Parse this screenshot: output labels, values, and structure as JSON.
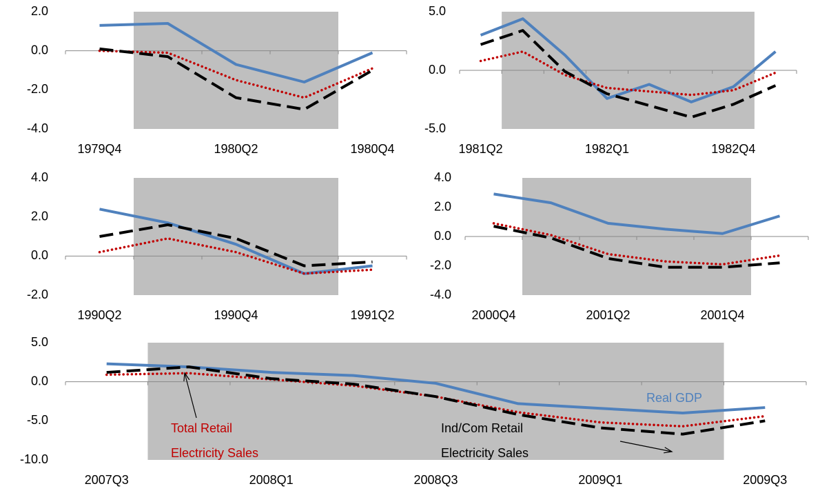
{
  "chart_data": [
    {
      "type": "line",
      "categories": [
        "1979Q4",
        null,
        "1980Q2",
        null,
        "1980Q4"
      ],
      "shade": [
        1,
        3
      ],
      "ylim": [
        -4,
        2
      ],
      "yticks": [
        {
          "value": -4,
          "label": "-4.0"
        },
        {
          "value": -2,
          "label": "-2.0"
        },
        {
          "value": 0,
          "label": "0.0"
        },
        {
          "value": 2,
          "label": "2.0"
        }
      ],
      "series": [
        {
          "color": "#4f81bd",
          "dash": "solid",
          "values": [
            1.3,
            1.4,
            -0.7,
            -1.6,
            -0.1
          ]
        },
        {
          "color": "#c00000",
          "dash": "dotted",
          "values": [
            0.0,
            -0.1,
            -1.5,
            -2.4,
            -0.9
          ]
        },
        {
          "color": "#000000",
          "dash": "dashed",
          "values": [
            0.1,
            -0.3,
            -2.4,
            -3.0,
            -1.0
          ]
        }
      ]
    },
    {
      "type": "line",
      "categories": [
        "1981Q2",
        null,
        null,
        "1982Q1",
        null,
        null,
        "1982Q4",
        null
      ],
      "shade": [
        1,
        6
      ],
      "ylim": [
        -5,
        5
      ],
      "yticks": [
        {
          "value": -5,
          "label": "-5.0"
        },
        {
          "value": 0,
          "label": "0.0"
        },
        {
          "value": 5,
          "label": "5.0"
        }
      ],
      "series": [
        {
          "color": "#4f81bd",
          "dash": "solid",
          "values": [
            3.0,
            4.4,
            1.3,
            -2.4,
            -1.2,
            -2.7,
            -1.4,
            1.6
          ]
        },
        {
          "color": "#c00000",
          "dash": "dotted",
          "values": [
            0.8,
            1.6,
            -0.4,
            -1.5,
            -1.8,
            -2.1,
            -1.7,
            -0.2
          ]
        },
        {
          "color": "#000000",
          "dash": "dashed",
          "values": [
            2.2,
            3.4,
            -0.1,
            -2.0,
            -3.0,
            -4.0,
            -2.9,
            -1.3
          ]
        }
      ]
    },
    {
      "type": "line",
      "categories": [
        "1990Q2",
        null,
        "1990Q4",
        null,
        "1991Q2"
      ],
      "shade": [
        1,
        3
      ],
      "ylim": [
        -2,
        4
      ],
      "yticks": [
        {
          "value": -2,
          "label": "-2.0"
        },
        {
          "value": 0,
          "label": "0.0"
        },
        {
          "value": 2,
          "label": "2.0"
        },
        {
          "value": 4,
          "label": "4.0"
        }
      ],
      "series": [
        {
          "color": "#4f81bd",
          "dash": "solid",
          "values": [
            2.4,
            1.7,
            0.6,
            -0.9,
            -0.5
          ]
        },
        {
          "color": "#c00000",
          "dash": "dotted",
          "values": [
            0.2,
            0.9,
            0.2,
            -0.9,
            -0.7
          ]
        },
        {
          "color": "#000000",
          "dash": "dashed",
          "values": [
            1.0,
            1.6,
            0.9,
            -0.5,
            -0.3
          ]
        }
      ]
    },
    {
      "type": "line",
      "categories": [
        "2000Q4",
        null,
        "2001Q2",
        null,
        "2001Q4",
        null
      ],
      "shade": [
        1,
        4
      ],
      "ylim": [
        -4,
        4
      ],
      "yticks": [
        {
          "value": -4,
          "label": "-4.0"
        },
        {
          "value": -2,
          "label": "-2.0"
        },
        {
          "value": 0,
          "label": "0.0"
        },
        {
          "value": 2,
          "label": "2.0"
        },
        {
          "value": 4,
          "label": "4.0"
        }
      ],
      "series": [
        {
          "color": "#4f81bd",
          "dash": "solid",
          "values": [
            2.9,
            2.3,
            0.9,
            0.5,
            0.2,
            1.4
          ]
        },
        {
          "color": "#c00000",
          "dash": "dotted",
          "values": [
            0.9,
            0.1,
            -1.2,
            -1.7,
            -1.9,
            -1.3
          ]
        },
        {
          "color": "#000000",
          "dash": "dashed",
          "values": [
            0.7,
            -0.1,
            -1.5,
            -2.1,
            -2.1,
            -1.8
          ]
        }
      ]
    },
    {
      "type": "line",
      "categories": [
        "2007Q3",
        null,
        "2008Q1",
        null,
        "2008Q3",
        null,
        "2009Q1",
        null,
        "2009Q3"
      ],
      "shade": [
        1,
        7
      ],
      "ylim": [
        -10,
        5
      ],
      "yticks": [
        {
          "value": -10,
          "label": "-10.0"
        },
        {
          "value": -5,
          "label": "-5.0"
        },
        {
          "value": 0,
          "label": "0.0"
        },
        {
          "value": 5,
          "label": "5.0"
        }
      ],
      "series": [
        {
          "color": "#4f81bd",
          "dash": "solid",
          "values": [
            2.3,
            1.9,
            1.2,
            0.8,
            -0.2,
            -2.8,
            -3.4,
            -4.0,
            -3.3
          ]
        },
        {
          "color": "#c00000",
          "dash": "dotted",
          "values": [
            0.9,
            1.1,
            0.3,
            -0.5,
            -1.9,
            -3.9,
            -5.2,
            -5.7,
            -4.4
          ]
        },
        {
          "color": "#000000",
          "dash": "dashed",
          "values": [
            1.2,
            1.9,
            0.4,
            -0.3,
            -1.9,
            -4.2,
            -5.9,
            -6.7,
            -5.0
          ]
        }
      ],
      "annotations": [
        {
          "lines": [
            "Real GDP"
          ],
          "color": "#4f81bd"
        },
        {
          "lines": [
            "Total Retail",
            "Electricity Sales"
          ],
          "color": "#c00000"
        },
        {
          "lines": [
            "Ind/Com Retail",
            "Electricity Sales"
          ],
          "color": "#000000"
        }
      ]
    }
  ]
}
